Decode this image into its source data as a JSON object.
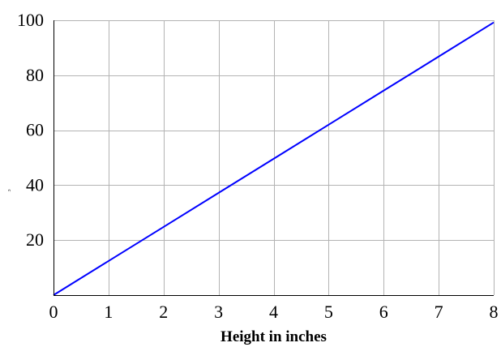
{
  "chart_data": {
    "type": "line",
    "title": "",
    "xlabel": "Height in inches",
    "ylabel": "ᵓ",
    "xlim": [
      0,
      8
    ],
    "ylim": [
      0,
      100
    ],
    "x_ticks": [
      0,
      1,
      2,
      3,
      4,
      5,
      6,
      7,
      8
    ],
    "y_ticks": [
      20,
      40,
      60,
      80,
      100
    ],
    "grid": true,
    "series": [
      {
        "x": [
          0,
          1,
          2,
          3,
          4,
          5,
          6,
          7,
          8
        ],
        "y": [
          0,
          12.4,
          24.8,
          37.2,
          49.6,
          62,
          74.4,
          86.8,
          99.2
        ],
        "color": "#0000ff"
      }
    ]
  }
}
